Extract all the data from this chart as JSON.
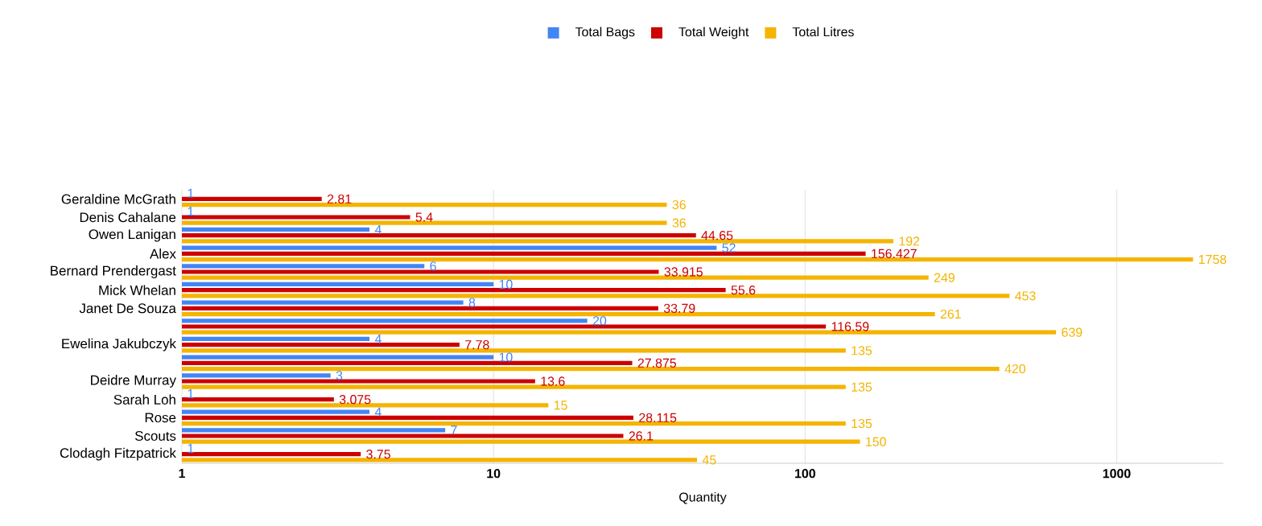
{
  "chart_data": {
    "type": "bar",
    "orientation": "horizontal",
    "xlabel": "Quantity",
    "log": "x",
    "grid": "x",
    "legend": "top",
    "data_labels": true,
    "categories": [
      "Geraldine McGrath",
      "Denis Cahalane",
      "Owen Lanigan",
      "Alex",
      "Bernard Prendergast",
      "Mick Whelan",
      "Janet De Souza",
      null,
      "Ewelina Jakubczyk",
      null,
      "Deidre Murray",
      "Sarah Loh",
      "Rose",
      "Scouts",
      "Clodagh Fitzpatrick"
    ],
    "xlim": [
      1,
      2200
    ],
    "xticks": [
      1,
      10,
      100,
      1000
    ],
    "series": [
      {
        "name": "Total Bags",
        "color": "#4285f4",
        "values": [
          1,
          1,
          4,
          52,
          6,
          10,
          8,
          20,
          4,
          10,
          3,
          1,
          4,
          7,
          1
        ]
      },
      {
        "name": "Total Weight",
        "color": "#cc0000",
        "values": [
          2.81,
          5.4,
          44.65,
          156.427,
          33.915,
          55.6,
          33.79,
          116.59,
          7.78,
          27.875,
          13.6,
          3.075,
          28.115,
          26.1,
          3.75
        ]
      },
      {
        "name": "Total Litres",
        "color": "#f4b400",
        "values": [
          36,
          36,
          192,
          1758,
          249,
          453,
          261,
          639,
          135,
          420,
          135,
          15,
          135,
          150,
          45
        ]
      }
    ]
  }
}
